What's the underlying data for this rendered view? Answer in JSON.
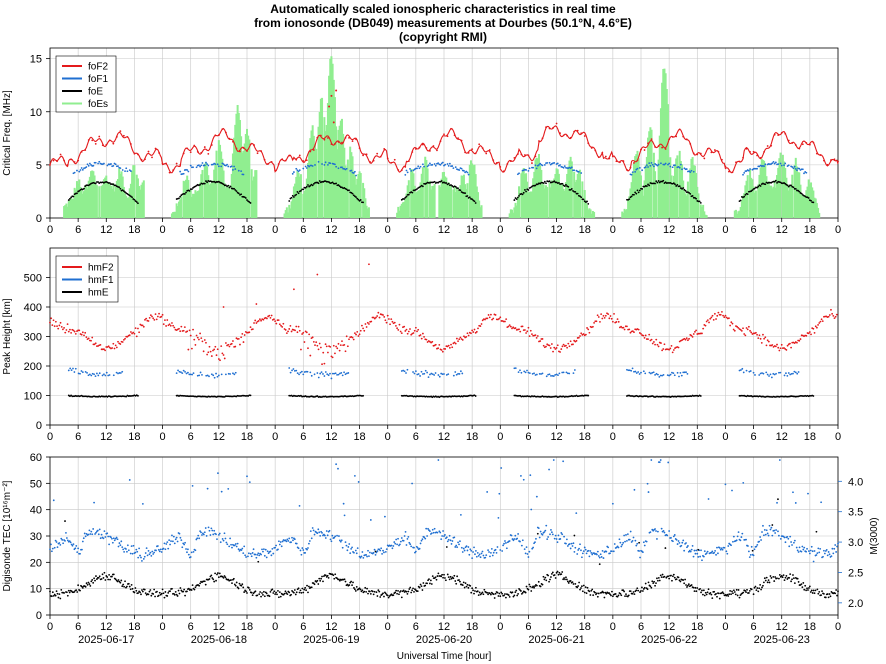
{
  "title": {
    "line1": "Automatically scaled ionospheric characteristics in real time",
    "line2": "from ionosonde (DB049) measurements at Dourbes (50.1°N, 4.6°E)",
    "line3": "(copyright RMI)"
  },
  "chart_data": [
    {
      "type": "line",
      "panel": "critical-frequency",
      "ylabel": "Critical Freq. [MHz]",
      "ylim": [
        0,
        16
      ],
      "yticks": [
        0,
        5,
        10,
        15
      ],
      "xlim_hours": [
        0,
        168
      ],
      "xticks": [
        "0",
        "6",
        "12",
        "18",
        "0",
        "6",
        "12",
        "18",
        "0",
        "6",
        "12",
        "18",
        "0",
        "6",
        "12",
        "18",
        "0",
        "6",
        "12",
        "18",
        "0",
        "6",
        "12",
        "18",
        "0",
        "6",
        "12",
        "18",
        "0"
      ],
      "legend_position": "top-left",
      "series": [
        {
          "name": "foF2",
          "color": "#e41a1c"
        },
        {
          "name": "foF1",
          "color": "#1f6fd1"
        },
        {
          "name": "foE",
          "color": "#000000"
        },
        {
          "name": "foEs",
          "color": "#90ee90"
        }
      ]
    },
    {
      "type": "scatter",
      "panel": "peak-height",
      "ylabel": "Peak Height [km]",
      "ylim": [
        0,
        600
      ],
      "yticks": [
        0,
        100,
        200,
        300,
        400,
        500
      ],
      "xlim_hours": [
        0,
        168
      ],
      "xticks": [
        "0",
        "6",
        "12",
        "18",
        "0",
        "6",
        "12",
        "18",
        "0",
        "6",
        "12",
        "18",
        "0",
        "6",
        "12",
        "18",
        "0",
        "6",
        "12",
        "18",
        "0",
        "6",
        "12",
        "18",
        "0",
        "6",
        "12",
        "18",
        "0"
      ],
      "legend_position": "top-left",
      "series": [
        {
          "name": "hmF2",
          "color": "#e41a1c"
        },
        {
          "name": "hmF1",
          "color": "#1f6fd1"
        },
        {
          "name": "hmE",
          "color": "#000000"
        }
      ]
    },
    {
      "type": "scatter",
      "panel": "tec-m3000",
      "ylabel": "Digisonde TEC [10¹⁶m⁻²]",
      "ylabel_right": "M(3000)",
      "ylim": [
        0,
        60
      ],
      "yticks": [
        0,
        10,
        20,
        30,
        40,
        50,
        60
      ],
      "ylim_right": [
        1.8,
        4.4
      ],
      "yticks_right": [
        "2.0",
        "2.5",
        "3.0",
        "3.5",
        "4.0"
      ],
      "xlim_hours": [
        0,
        168
      ],
      "xticks": [
        "0",
        "6",
        "12",
        "18",
        "0",
        "6",
        "12",
        "18",
        "0",
        "6",
        "12",
        "18",
        "0",
        "6",
        "12",
        "18",
        "0",
        "6",
        "12",
        "18",
        "0",
        "6",
        "12",
        "18",
        "0",
        "6",
        "12",
        "18",
        "0"
      ],
      "dates": [
        "2025-06-17",
        "2025-06-18",
        "2025-06-19",
        "2025-06-20",
        "2025-06-21",
        "2025-06-22",
        "2025-06-23"
      ],
      "xlabel": "Universal Time [hour]",
      "series": [
        {
          "name": "TEC",
          "color": "#000000"
        },
        {
          "name": "M(3000)",
          "color": "#1f6fd1"
        }
      ]
    }
  ]
}
